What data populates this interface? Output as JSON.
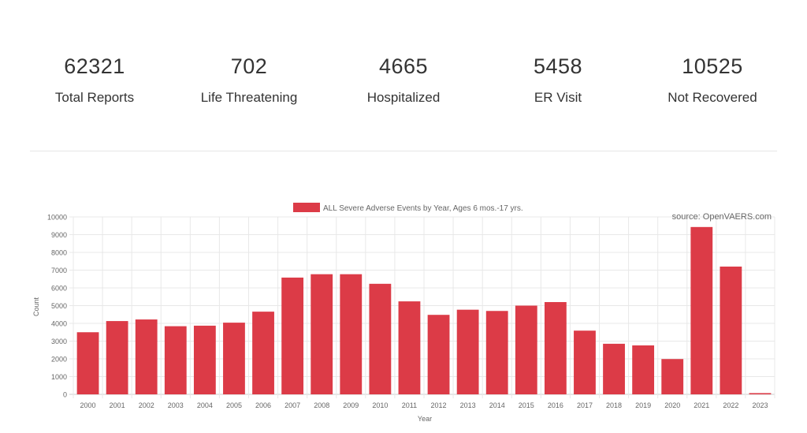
{
  "stats": [
    {
      "value": "62321",
      "label": "Total Reports"
    },
    {
      "value": "702",
      "label": "Life Threatening"
    },
    {
      "value": "4665",
      "label": "Hospitalized"
    },
    {
      "value": "5458",
      "label": "ER Visit"
    },
    {
      "value": "10525",
      "label": "Not Recovered"
    }
  ],
  "chart_data": {
    "type": "bar",
    "source": "source: OpenVAERS.com",
    "xlabel": "Year",
    "ylabel": "Count",
    "ylim": [
      0,
      10000
    ],
    "y_ticks": [
      0,
      1000,
      2000,
      3000,
      4000,
      5000,
      6000,
      7000,
      8000,
      9000,
      10000
    ],
    "grid": true,
    "legend_position": "top",
    "categories": [
      "2000",
      "2001",
      "2002",
      "2003",
      "2004",
      "2005",
      "2006",
      "2007",
      "2008",
      "2009",
      "2010",
      "2011",
      "2012",
      "2013",
      "2014",
      "2015",
      "2016",
      "2017",
      "2018",
      "2019",
      "2020",
      "2021",
      "2022",
      "2023"
    ],
    "series": [
      {
        "name": "ALL Severe Adverse Events by Year, Ages 6 mos.-17 yrs.",
        "color": "#dc3b47",
        "values": [
          3500,
          4130,
          4220,
          3840,
          3870,
          4040,
          4660,
          6580,
          6770,
          6770,
          6230,
          5240,
          4480,
          4770,
          4700,
          5000,
          5200,
          3590,
          2850,
          2760,
          1990,
          9430,
          7200,
          70
        ]
      }
    ]
  }
}
